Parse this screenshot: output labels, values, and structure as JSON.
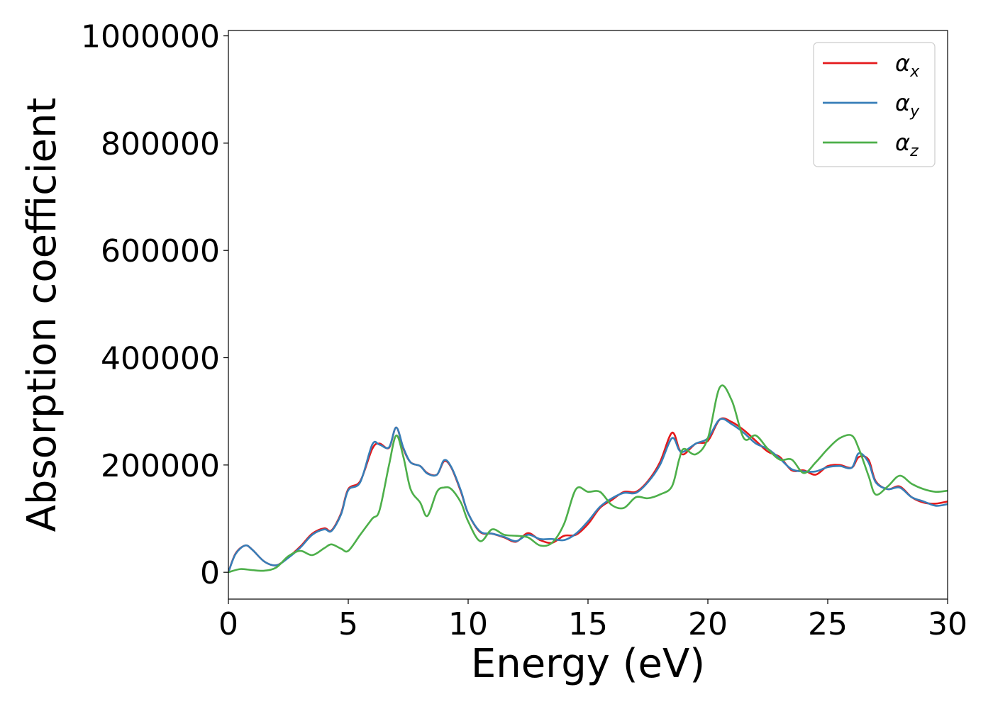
{
  "chart_data": {
    "type": "line",
    "title": "",
    "xlabel": "Energy (eV)",
    "ylabel": "Absorption coefficient",
    "xlim": [
      0,
      30
    ],
    "ylim": [
      -50000,
      1010000
    ],
    "x_ticks": [
      0,
      5,
      10,
      15,
      20,
      25,
      30
    ],
    "x_tick_labels": [
      "0",
      "5",
      "10",
      "15",
      "20",
      "25",
      "30"
    ],
    "y_ticks": [
      0,
      200000,
      400000,
      600000,
      800000,
      1000000
    ],
    "y_tick_labels": [
      "0",
      "200000",
      "400000",
      "600000",
      "800000",
      "1000000"
    ],
    "grid": false,
    "legend_position": "top-right",
    "series": [
      {
        "name": "αx",
        "label_base": "α",
        "label_sub": "x",
        "color": "#e41a1c",
        "x": [
          0,
          0.3,
          0.7,
          1.0,
          1.5,
          2.0,
          2.5,
          3.0,
          3.5,
          4.0,
          4.3,
          4.7,
          5.0,
          5.5,
          6.0,
          6.3,
          6.7,
          7.0,
          7.3,
          7.6,
          8.0,
          8.3,
          8.7,
          9.0,
          9.3,
          9.7,
          10.0,
          10.5,
          11.0,
          11.5,
          12.0,
          12.5,
          13.0,
          13.5,
          14.0,
          14.5,
          15.0,
          15.5,
          16.0,
          16.5,
          17.0,
          17.5,
          18.0,
          18.5,
          18.8,
          19.0,
          19.5,
          20.0,
          20.5,
          21.0,
          21.5,
          22.0,
          22.5,
          23.0,
          23.5,
          24.0,
          24.5,
          25.0,
          25.5,
          26.0,
          26.3,
          26.7,
          27.0,
          27.5,
          28.0,
          28.5,
          29.0,
          29.5,
          30.0
        ],
        "y": [
          0,
          35000,
          50000,
          42000,
          20000,
          13000,
          28000,
          48000,
          72000,
          82000,
          78000,
          110000,
          155000,
          170000,
          230000,
          240000,
          232000,
          270000,
          230000,
          205000,
          198000,
          185000,
          182000,
          207000,
          195000,
          150000,
          110000,
          75000,
          72000,
          65000,
          57000,
          73000,
          60000,
          55000,
          68000,
          70000,
          90000,
          120000,
          135000,
          150000,
          150000,
          170000,
          205000,
          260000,
          230000,
          220000,
          240000,
          245000,
          285000,
          280000,
          265000,
          245000,
          225000,
          215000,
          190000,
          190000,
          182000,
          198000,
          200000,
          195000,
          215000,
          210000,
          170000,
          155000,
          160000,
          140000,
          130000,
          128000,
          132000
        ]
      },
      {
        "name": "αy",
        "label_base": "α",
        "label_sub": "y",
        "color": "#377eb8",
        "x": [
          0,
          0.3,
          0.7,
          1.0,
          1.5,
          2.0,
          2.5,
          3.0,
          3.5,
          4.0,
          4.3,
          4.7,
          5.0,
          5.5,
          6.0,
          6.3,
          6.7,
          7.0,
          7.3,
          7.6,
          8.0,
          8.3,
          8.7,
          9.0,
          9.3,
          9.7,
          10.0,
          10.5,
          11.0,
          11.5,
          12.0,
          12.5,
          13.0,
          13.5,
          14.0,
          14.5,
          15.0,
          15.5,
          16.0,
          16.5,
          17.0,
          17.5,
          18.0,
          18.5,
          18.8,
          19.0,
          19.5,
          20.0,
          20.5,
          21.0,
          21.5,
          22.0,
          22.5,
          23.0,
          23.5,
          24.0,
          24.5,
          25.0,
          25.5,
          26.0,
          26.3,
          26.7,
          27.0,
          27.5,
          28.0,
          28.5,
          29.0,
          29.5,
          30.0
        ],
        "y": [
          0,
          34000,
          50000,
          42000,
          20000,
          13000,
          27000,
          46000,
          70000,
          80000,
          77000,
          108000,
          153000,
          168000,
          238000,
          238000,
          233000,
          270000,
          232000,
          205000,
          198000,
          184000,
          182000,
          209000,
          196000,
          152000,
          110000,
          76000,
          72000,
          66000,
          58000,
          70000,
          62000,
          62000,
          60000,
          72000,
          95000,
          122000,
          138000,
          148000,
          148000,
          168000,
          200000,
          250000,
          228000,
          225000,
          240000,
          250000,
          285000,
          276000,
          260000,
          240000,
          230000,
          212000,
          192000,
          188000,
          188000,
          196000,
          198000,
          195000,
          222000,
          205000,
          168000,
          155000,
          158000,
          140000,
          132000,
          124000,
          127000
        ]
      },
      {
        "name": "αz",
        "label_base": "α",
        "label_sub": "z",
        "color": "#4daf4a",
        "x": [
          0,
          0.5,
          1.0,
          1.5,
          2.0,
          2.5,
          3.0,
          3.5,
          4.0,
          4.3,
          4.7,
          5.0,
          5.5,
          6.0,
          6.3,
          6.7,
          7.0,
          7.3,
          7.6,
          8.0,
          8.3,
          8.7,
          9.0,
          9.3,
          9.7,
          10.0,
          10.5,
          11.0,
          11.5,
          12.0,
          12.5,
          13.0,
          13.5,
          14.0,
          14.5,
          15.0,
          15.5,
          16.0,
          16.5,
          17.0,
          17.5,
          18.0,
          18.5,
          18.8,
          19.0,
          19.5,
          20.0,
          20.5,
          21.0,
          21.5,
          22.0,
          22.5,
          23.0,
          23.5,
          24.0,
          24.5,
          25.0,
          25.5,
          26.0,
          26.3,
          26.7,
          27.0,
          27.5,
          28.0,
          28.5,
          29.0,
          29.5,
          30.0
        ],
        "y": [
          0,
          6000,
          4000,
          3000,
          9000,
          30000,
          40000,
          32000,
          45000,
          52000,
          44000,
          40000,
          70000,
          100000,
          115000,
          200000,
          255000,
          215000,
          155000,
          130000,
          105000,
          150000,
          158000,
          155000,
          130000,
          95000,
          58000,
          80000,
          70000,
          68000,
          65000,
          50000,
          55000,
          90000,
          155000,
          150000,
          150000,
          125000,
          120000,
          140000,
          138000,
          145000,
          160000,
          210000,
          230000,
          220000,
          250000,
          345000,
          320000,
          250000,
          255000,
          230000,
          210000,
          210000,
          185000,
          205000,
          230000,
          250000,
          255000,
          230000,
          180000,
          145000,
          160000,
          180000,
          165000,
          155000,
          150000,
          152000
        ]
      }
    ]
  }
}
